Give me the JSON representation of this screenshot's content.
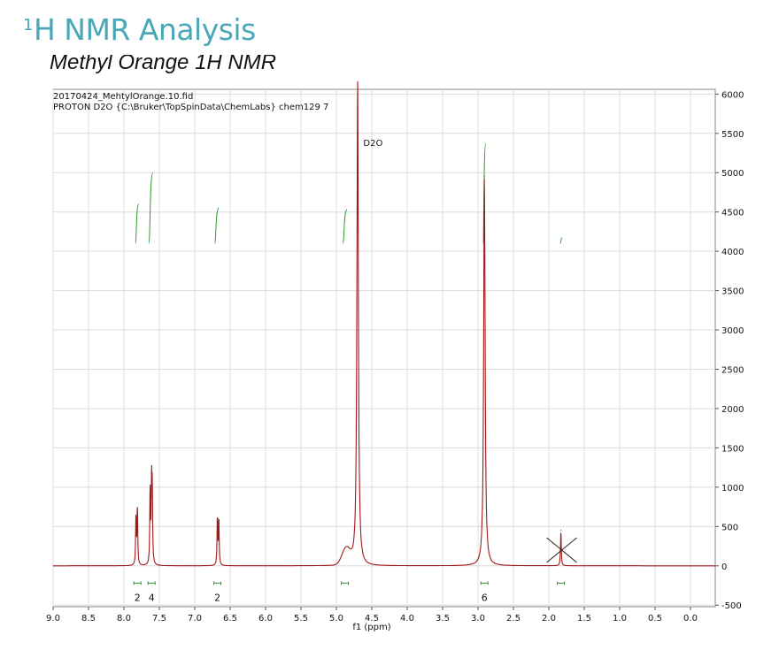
{
  "header": {
    "sup": "1",
    "title": "H NMR Analysis",
    "caption": "Methyl Orange 1H NMR"
  },
  "chart_data": {
    "type": "line",
    "file_line1": "20170424_MehtylOrange.10.fid",
    "file_line2": "PROTON D2O {C:\\Bruker\\TopSpinData\\ChemLabs} chem129 7",
    "xlabel": "f1 (ppm)",
    "xlim": [
      9.0,
      -0.35
    ],
    "ylim": [
      -520,
      6060
    ],
    "x_ticks": [
      "9.0",
      "8.5",
      "8.0",
      "7.5",
      "7.0",
      "6.5",
      "6.0",
      "5.5",
      "5.0",
      "4.5",
      "4.0",
      "3.5",
      "3.0",
      "2.5",
      "2.0",
      "1.5",
      "1.0",
      "0.5",
      "0.0"
    ],
    "y_ticks": [
      "6000",
      "5500",
      "5000",
      "4500",
      "4000",
      "3500",
      "3000",
      "2500",
      "2000",
      "1500",
      "1000",
      "500",
      "0",
      "-500"
    ],
    "grid": true,
    "spectrum_color": "#a01818",
    "integral_color": "#2e9a2e",
    "peaks": [
      {
        "ppm": 7.83,
        "height": 620
      },
      {
        "ppm": 7.81,
        "height": 740
      },
      {
        "ppm": 7.63,
        "height": 950
      },
      {
        "ppm": 7.61,
        "height": 960
      },
      {
        "ppm": 7.6,
        "height": 880
      },
      {
        "ppm": 6.68,
        "height": 610
      },
      {
        "ppm": 6.66,
        "height": 580
      },
      {
        "ppm": 4.7,
        "height": 6200
      },
      {
        "ppm": 2.91,
        "height": 4950
      },
      {
        "ppm": 1.83,
        "height": 450
      }
    ],
    "peak_annotations": [
      {
        "label": "D2O",
        "ppm": 4.62,
        "y": 5500
      }
    ],
    "integrals": [
      {
        "ppm_start": 7.84,
        "ppm_end": 7.79,
        "y_start": 4100,
        "y_end": 4600
      },
      {
        "ppm_start": 7.65,
        "ppm_end": 7.59,
        "y_start": 4100,
        "y_end": 5000
      },
      {
        "ppm_start": 6.72,
        "ppm_end": 6.66,
        "y_start": 4100,
        "y_end": 4550
      },
      {
        "ppm_start": 4.91,
        "ppm_end": 4.85,
        "y_start": 4100,
        "y_end": 4530
      },
      {
        "ppm_start": 2.93,
        "ppm_end": 2.89,
        "y_start": 4100,
        "y_end": 5380
      },
      {
        "ppm_start": 1.84,
        "ppm_end": 1.81,
        "y_start": 4100,
        "y_end": 4170
      }
    ],
    "integration_markers": [
      {
        "ppm": 7.81,
        "label": "2"
      },
      {
        "ppm": 7.61,
        "label": "4"
      },
      {
        "ppm": 6.68,
        "label": "2"
      },
      {
        "ppm": 4.88,
        "label": ""
      },
      {
        "ppm": 2.91,
        "label": "6"
      },
      {
        "ppm": 1.83,
        "label": ""
      }
    ],
    "crossed_peak_ppm": 1.83,
    "crossed_peak_y": 200
  }
}
